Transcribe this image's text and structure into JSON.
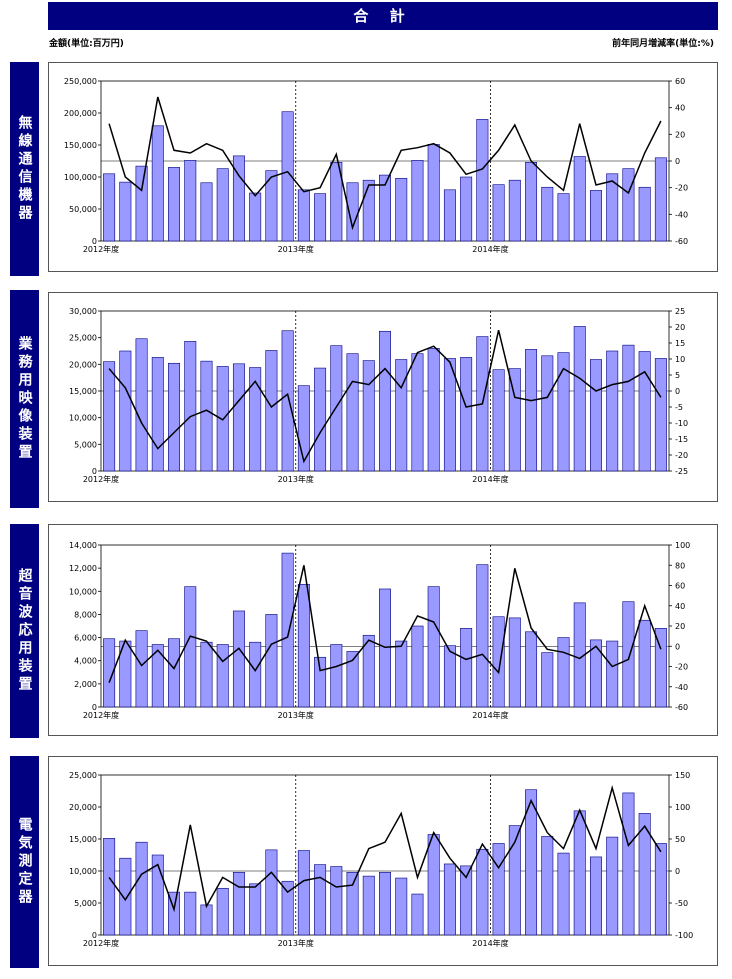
{
  "header": {
    "title": "合 計",
    "unit_left": "金額(単位:百万円)",
    "unit_right": "前年同月増減率(単位:%)"
  },
  "colors": {
    "title_bg": "#000080",
    "bar_fill": "#9999ff",
    "bar_stroke": "#000080",
    "line": "#000000"
  },
  "chart_data": [
    {
      "type": "bar+line",
      "label": "無線通信機器",
      "year_labels": [
        "2012年度",
        "2013年度",
        "2014年度"
      ],
      "y_left": {
        "min": 0,
        "max": 250000,
        "step": 50000,
        "ticks": [
          "0",
          "50,000",
          "100,000",
          "150,000",
          "200,000",
          "250,000"
        ]
      },
      "y_right": {
        "min": -60,
        "max": 60,
        "step": 20,
        "ticks": [
          "-60",
          "-40",
          "-20",
          "0",
          "20",
          "40",
          "60"
        ]
      },
      "bars": [
        105000,
        92000,
        117000,
        180000,
        115000,
        126000,
        91000,
        113000,
        133000,
        75000,
        110000,
        202000,
        80000,
        74000,
        123000,
        91000,
        95000,
        103000,
        98000,
        126000,
        151000,
        80000,
        100000,
        190000,
        88000,
        95000,
        123000,
        84000,
        74000,
        132000,
        79000,
        105000,
        113000,
        84000,
        130000
      ],
      "line": [
        28,
        -12,
        -22,
        48,
        8,
        6,
        13,
        8,
        -11,
        -26,
        -12,
        -8,
        -23,
        -20,
        5,
        -50,
        -18,
        -18,
        8,
        10,
        13,
        6,
        -10,
        -6,
        8,
        27,
        0,
        -12,
        -22,
        28,
        -18,
        -15,
        -24,
        6,
        30
      ]
    },
    {
      "type": "bar+line",
      "label": "業務用映像装置",
      "year_labels": [
        "2012年度",
        "2013年度",
        "2014年度"
      ],
      "y_left": {
        "min": 0,
        "max": 30000,
        "step": 5000,
        "ticks": [
          "0",
          "5,000",
          "10,000",
          "15,000",
          "20,000",
          "25,000",
          "30,000"
        ]
      },
      "y_right": {
        "min": -25,
        "max": 25,
        "step": 5,
        "ticks": [
          "-25",
          "-20",
          "-15",
          "-10",
          "-5",
          "0",
          "5",
          "10",
          "15",
          "20",
          "25"
        ]
      },
      "bars": [
        20500,
        22500,
        24800,
        21300,
        20200,
        24300,
        20600,
        19600,
        20100,
        19400,
        22600,
        26300,
        16000,
        19300,
        23500,
        22000,
        20700,
        26200,
        20900,
        22000,
        23000,
        21100,
        21300,
        25200,
        19000,
        19200,
        22800,
        21600,
        22200,
        27100,
        20900,
        22500,
        23600,
        22400,
        21100
      ],
      "line": [
        7,
        1,
        -10,
        -18,
        -13,
        -8,
        -6,
        -9,
        -3,
        3,
        -5,
        -1,
        -22,
        -13,
        -5,
        3,
        2,
        7,
        1,
        12,
        14,
        9,
        -5,
        -4,
        19,
        -2,
        -3,
        -2,
        7,
        4,
        0,
        2,
        3,
        6,
        -2
      ]
    },
    {
      "type": "bar+line",
      "label": "超音波応用装置",
      "year_labels": [
        "2012年度",
        "2013年度",
        "2014年度"
      ],
      "y_left": {
        "min": 0,
        "max": 14000,
        "step": 2000,
        "ticks": [
          "0",
          "2,000",
          "4,000",
          "6,000",
          "8,000",
          "10,000",
          "12,000",
          "14,000"
        ]
      },
      "y_right": {
        "min": -60,
        "max": 100,
        "step": 20,
        "ticks": [
          "-60",
          "-40",
          "-20",
          "0",
          "20",
          "40",
          "60",
          "80",
          "100"
        ]
      },
      "bars": [
        5900,
        5700,
        6600,
        5400,
        5900,
        10400,
        5600,
        5400,
        8300,
        5600,
        8000,
        13300,
        10600,
        4300,
        5400,
        4800,
        6200,
        10200,
        5700,
        7000,
        10400,
        5300,
        6800,
        12300,
        7800,
        7700,
        6500,
        4700,
        6000,
        9000,
        5800,
        5700,
        9100,
        7500,
        6800
      ],
      "line": [
        -36,
        6,
        -19,
        -4,
        -22,
        10,
        5,
        -15,
        -2,
        -24,
        2,
        9,
        80,
        -24,
        -20,
        -14,
        6,
        -1,
        0,
        30,
        24,
        -5,
        -13,
        -8,
        -26,
        77,
        18,
        -3,
        -6,
        -12,
        0,
        -20,
        -13,
        40,
        -3
      ]
    },
    {
      "type": "bar+line",
      "label": "電気測定器",
      "year_labels": [
        "2012年度",
        "2013年度",
        "2014年度"
      ],
      "y_left": {
        "min": 0,
        "max": 25000,
        "step": 5000,
        "ticks": [
          "0",
          "5,000",
          "10,000",
          "15,000",
          "20,000",
          "25,000"
        ]
      },
      "y_right": {
        "min": -100,
        "max": 150,
        "step": 50,
        "ticks": [
          "-100",
          "-50",
          "0",
          "50",
          "100",
          "150"
        ]
      },
      "bars": [
        15100,
        12000,
        14500,
        12500,
        6700,
        6700,
        4700,
        7300,
        9800,
        8000,
        13300,
        8400,
        13200,
        11000,
        10700,
        9800,
        9200,
        9800,
        8900,
        6400,
        15700,
        11100,
        10800,
        13400,
        14300,
        17100,
        22700,
        15400,
        12800,
        19400,
        12200,
        15300,
        22200,
        19000,
        14300
      ],
      "line": [
        -10,
        -45,
        -5,
        10,
        -60,
        72,
        -55,
        -10,
        -25,
        -25,
        -2,
        -33,
        -15,
        -10,
        -25,
        -22,
        35,
        45,
        90,
        -10,
        60,
        20,
        -10,
        42,
        5,
        45,
        110,
        60,
        35,
        95,
        35,
        130,
        40,
        70,
        30
      ]
    }
  ]
}
